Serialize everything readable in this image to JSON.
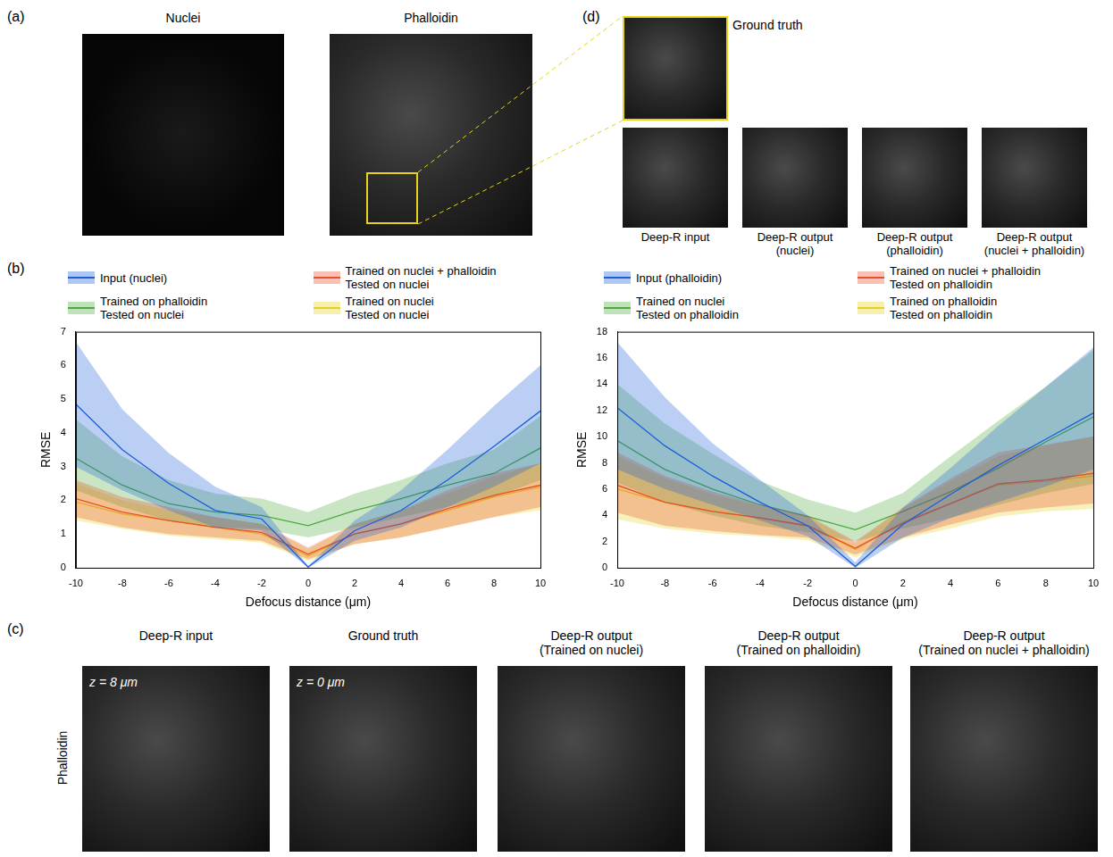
{
  "panel_a": {
    "label": "(a)",
    "images": [
      {
        "title": "Nuclei"
      },
      {
        "title": "Phalloidin"
      }
    ]
  },
  "panel_d": {
    "label": "(d)",
    "ground_truth": "Ground truth",
    "images": [
      {
        "title": "Deep-R input"
      },
      {
        "title": "Deep-R output\n(nuclei)"
      },
      {
        "title": "Deep-R output\n(phalloidin)"
      },
      {
        "title": "Deep-R output\n(nuclei + phalloidin)"
      }
    ]
  },
  "panel_b": {
    "label": "(b)"
  },
  "chart_data": [
    {
      "type": "line",
      "x_label": "Defocus distance (μm)",
      "y_label": "RMSE",
      "x": [
        -10,
        -8,
        -6,
        -4,
        -2,
        0,
        2,
        4,
        6,
        8,
        10
      ],
      "xlim": [
        -10,
        10
      ],
      "xticks": [
        -10,
        -8,
        -6,
        -4,
        -2,
        0,
        2,
        4,
        6,
        8,
        10
      ],
      "ylim": [
        0,
        7
      ],
      "yticks": [
        0,
        1,
        2,
        3,
        4,
        5,
        6,
        7
      ],
      "grid": false,
      "legend": "top",
      "series": [
        {
          "name": "Input (nuclei)",
          "color": "#1a5fd8",
          "values": [
            4.85,
            3.5,
            2.5,
            1.7,
            1.45,
            0.02,
            1.1,
            1.7,
            2.6,
            3.6,
            4.65
          ],
          "upper": [
            6.7,
            4.7,
            3.4,
            2.4,
            1.8,
            0.05,
            1.4,
            2.3,
            3.5,
            4.8,
            6.0
          ],
          "lower": [
            3.0,
            2.3,
            1.7,
            1.2,
            1.1,
            0.0,
            0.8,
            1.2,
            1.8,
            2.4,
            3.1
          ]
        },
        {
          "name": "Trained on nuclei + phalloidin\nTested on nuclei",
          "color": "#e8502a",
          "values": [
            2.05,
            1.65,
            1.4,
            1.2,
            1.05,
            0.4,
            1.0,
            1.3,
            1.75,
            2.15,
            2.45
          ],
          "upper": [
            2.6,
            2.1,
            1.8,
            1.5,
            1.3,
            0.6,
            1.3,
            1.7,
            2.3,
            2.8,
            3.1
          ],
          "lower": [
            1.5,
            1.2,
            1.0,
            0.9,
            0.8,
            0.25,
            0.7,
            0.9,
            1.2,
            1.5,
            1.8
          ]
        },
        {
          "name": "Trained on phalloidin\nTested on nuclei",
          "color": "#4daa3c",
          "values": [
            3.25,
            2.45,
            1.9,
            1.65,
            1.55,
            1.25,
            1.7,
            2.05,
            2.45,
            2.8,
            3.55
          ],
          "upper": [
            4.4,
            3.3,
            2.6,
            2.2,
            2.05,
            1.65,
            2.2,
            2.6,
            3.1,
            3.5,
            4.5
          ],
          "lower": [
            2.3,
            1.8,
            1.4,
            1.2,
            1.15,
            0.9,
            1.2,
            1.5,
            1.8,
            2.1,
            2.6
          ]
        },
        {
          "name": "Trained on nuclei\nTested on nuclei",
          "color": "#e6d21e",
          "values": [
            1.95,
            1.6,
            1.4,
            1.2,
            1.0,
            0.35,
            1.0,
            1.3,
            1.7,
            2.1,
            2.4
          ],
          "upper": [
            2.5,
            2.0,
            1.7,
            1.5,
            1.3,
            0.55,
            1.3,
            1.7,
            2.2,
            2.7,
            3.1
          ],
          "lower": [
            1.4,
            1.15,
            0.95,
            0.85,
            0.75,
            0.2,
            0.7,
            0.9,
            1.2,
            1.5,
            1.7
          ]
        }
      ]
    },
    {
      "type": "line",
      "x_label": "Defocus distance (μm)",
      "y_label": "RMSE",
      "x": [
        -10,
        -8,
        -6,
        -4,
        -2,
        0,
        2,
        4,
        6,
        8,
        10
      ],
      "xlim": [
        -10,
        10
      ],
      "xticks": [
        -10,
        -8,
        -6,
        -4,
        -2,
        0,
        2,
        4,
        6,
        8,
        10
      ],
      "ylim": [
        0,
        18
      ],
      "yticks": [
        0,
        2,
        4,
        6,
        8,
        10,
        12,
        14,
        16,
        18
      ],
      "grid": false,
      "legend": "top",
      "series": [
        {
          "name": "Input (phalloidin)",
          "color": "#1a5fd8",
          "values": [
            12.2,
            9.3,
            7.0,
            5.0,
            3.2,
            0.1,
            3.3,
            5.6,
            7.8,
            9.8,
            11.8
          ],
          "upper": [
            17.2,
            13.0,
            9.5,
            6.7,
            4.0,
            0.4,
            4.6,
            7.6,
            10.8,
            13.8,
            16.8
          ],
          "lower": [
            7.5,
            6.0,
            4.8,
            3.6,
            2.4,
            0.0,
            2.3,
            3.8,
            5.0,
            6.2,
            7.5
          ]
        },
        {
          "name": "Trained on nuclei + phalloidin\nTested on phalloidin",
          "color": "#e8502a",
          "values": [
            6.3,
            5.0,
            4.3,
            3.8,
            3.2,
            1.5,
            3.4,
            4.9,
            6.4,
            6.7,
            7.2
          ],
          "upper": [
            8.8,
            7.0,
            5.8,
            4.8,
            4.0,
            2.0,
            4.6,
            6.8,
            8.8,
            9.4,
            10.0
          ],
          "lower": [
            4.2,
            3.2,
            2.8,
            2.5,
            2.3,
            1.0,
            2.3,
            3.3,
            4.2,
            4.6,
            4.9
          ]
        },
        {
          "name": "Trained on nuclei\nTested on phalloidin",
          "color": "#4daa3c",
          "values": [
            9.7,
            7.5,
            6.0,
            4.8,
            3.9,
            2.9,
            4.3,
            5.8,
            7.6,
            9.6,
            11.5
          ],
          "upper": [
            14.0,
            11.0,
            8.7,
            6.6,
            5.2,
            4.2,
            5.7,
            8.5,
            11.2,
            13.8,
            16.6
          ],
          "lower": [
            6.5,
            5.0,
            4.0,
            3.2,
            2.7,
            2.0,
            3.0,
            3.8,
            4.8,
            5.7,
            6.4
          ]
        },
        {
          "name": "Trained on phalloidin\nTested on phalloidin",
          "color": "#e6d21e",
          "values": [
            6.0,
            5.0,
            4.3,
            3.8,
            3.2,
            1.4,
            3.5,
            4.9,
            6.3,
            6.6,
            7.0
          ],
          "upper": [
            8.5,
            6.8,
            5.6,
            4.7,
            3.9,
            1.9,
            4.5,
            6.6,
            8.5,
            9.3,
            10.0
          ],
          "lower": [
            3.7,
            3.0,
            2.6,
            2.4,
            2.1,
            0.8,
            2.2,
            3.0,
            3.9,
            4.3,
            4.5
          ]
        }
      ]
    }
  ],
  "panel_c": {
    "label": "(c)",
    "row_label": "Phalloidin",
    "images": [
      {
        "title": "Deep-R input",
        "annotation": "z = 8 μm"
      },
      {
        "title": "Ground truth",
        "annotation": "z = 0 μm"
      },
      {
        "title": "Deep-R output\n(Trained on nuclei)"
      },
      {
        "title": "Deep-R output\n(Trained on phalloidin)"
      },
      {
        "title": "Deep-R output\n(Trained on nuclei + phalloidin)"
      }
    ]
  }
}
